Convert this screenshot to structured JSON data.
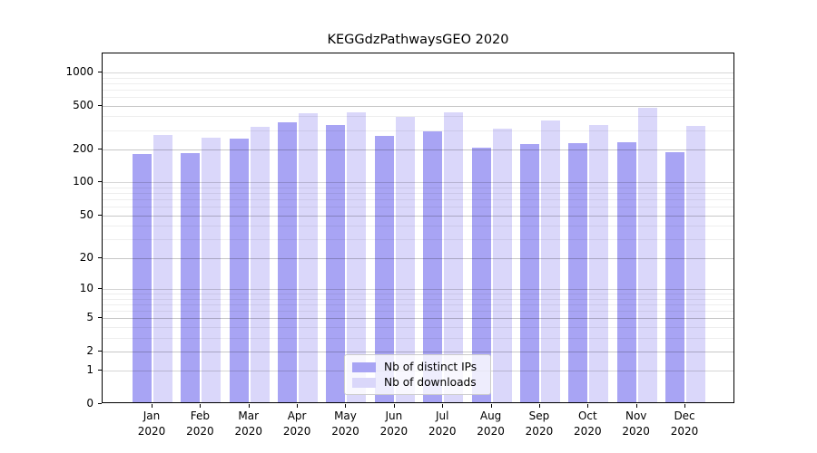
{
  "chart_data": {
    "type": "bar",
    "title": "KEGGdzPathwaysGEO 2020",
    "categories": [
      "Jan",
      "Feb",
      "Mar",
      "Apr",
      "May",
      "Jun",
      "Jul",
      "Aug",
      "Sep",
      "Oct",
      "Nov",
      "Dec"
    ],
    "x_year_label": "2020",
    "series": [
      {
        "name": "Nb of distinct IPs",
        "color": "#a8a4f4",
        "values": [
          182,
          185,
          251,
          351,
          335,
          264,
          291,
          207,
          223,
          227,
          234,
          190
        ]
      },
      {
        "name": "Nb of downloads",
        "color": "#dad7fa",
        "values": [
          269,
          255,
          321,
          427,
          437,
          393,
          432,
          311,
          367,
          334,
          475,
          329
        ]
      }
    ],
    "yticks": [
      0,
      1,
      2,
      5,
      10,
      20,
      50,
      100,
      200,
      500,
      1000
    ],
    "yscale": "log1p",
    "ylim": [
      0,
      1480
    ],
    "grid": "on",
    "legend_position": "lower-center"
  }
}
